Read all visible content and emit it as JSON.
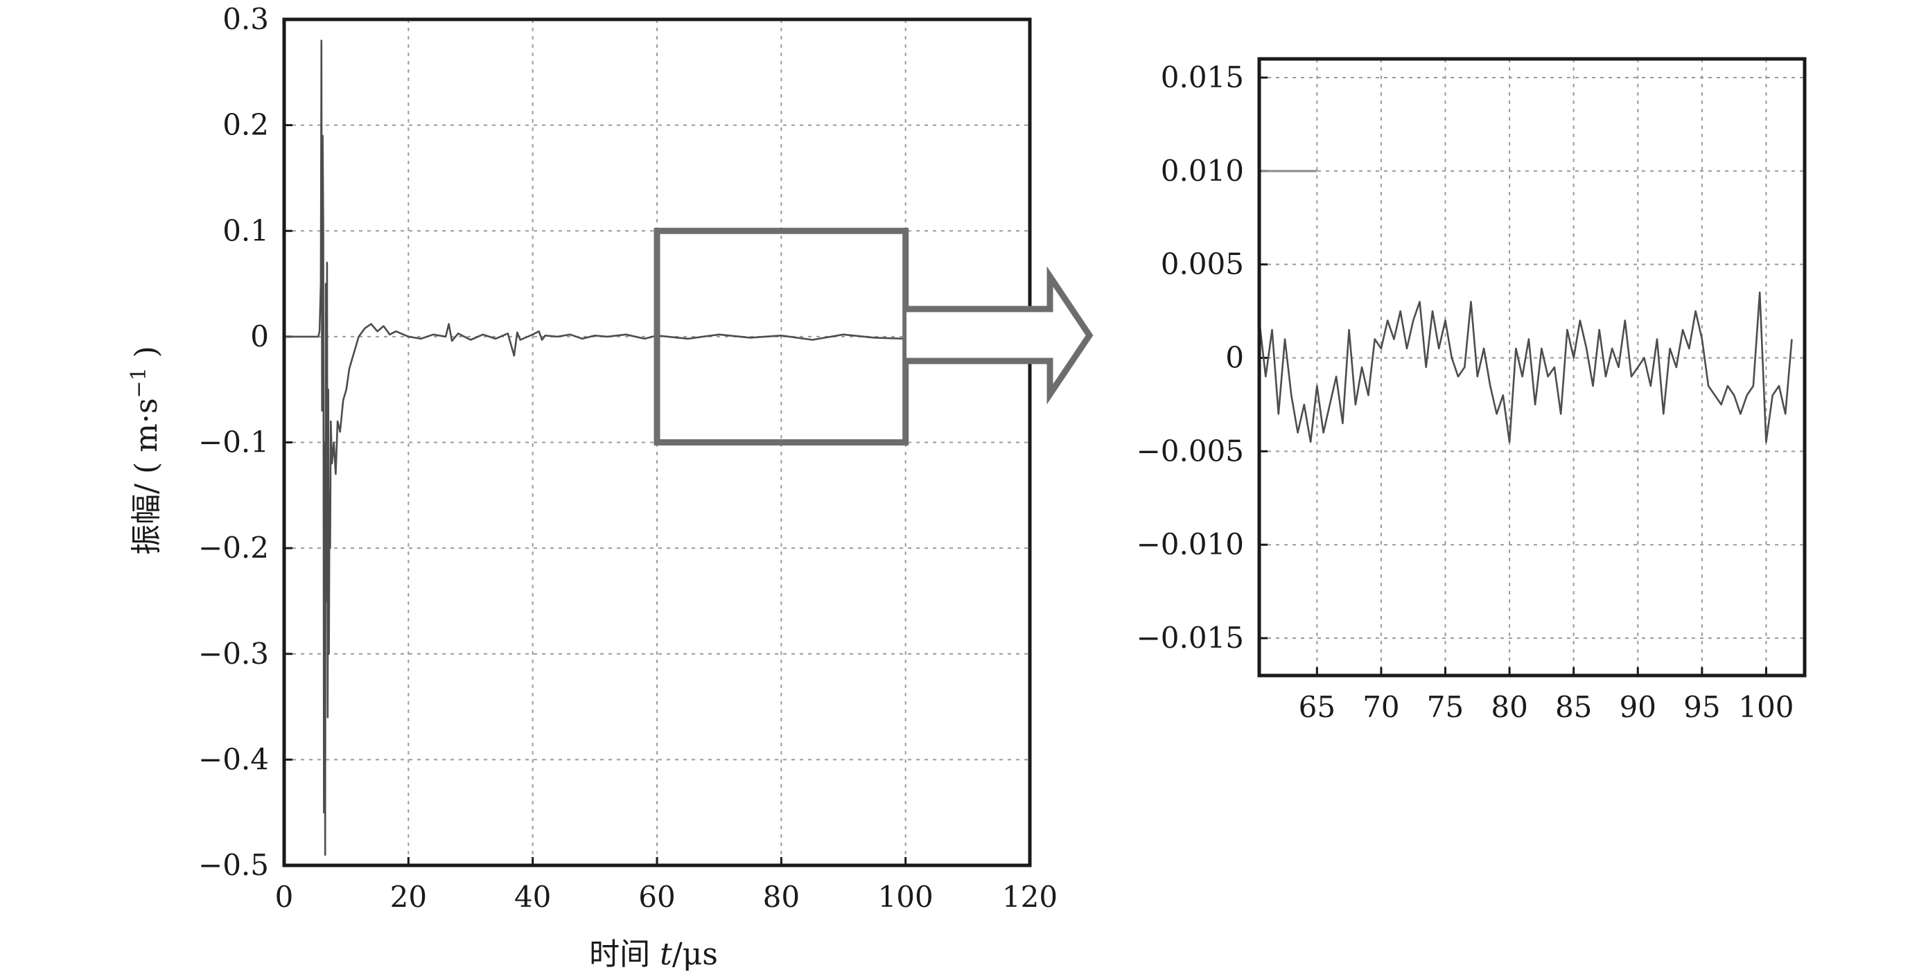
{
  "chart_data": [
    {
      "id": "main",
      "type": "line",
      "xlabel_prefix": "时间 ",
      "xlabel_var": "t",
      "xlabel_unit": "/μs",
      "ylabel_text": "振幅/ ( m·s",
      "ylabel_sup": "−1",
      "ylabel_close": " )",
      "xlim": [
        0,
        120
      ],
      "ylim": [
        -0.5,
        0.3
      ],
      "xticks": [
        0,
        20,
        40,
        60,
        80,
        100,
        120
      ],
      "xtick_labels": [
        "0",
        "20",
        "40",
        "60",
        "80",
        "100",
        "120"
      ],
      "yticks": [
        0.3,
        0.2,
        0.1,
        0,
        -0.1,
        -0.2,
        -0.3,
        -0.4,
        -0.5
      ],
      "ytick_labels": [
        "0.3",
        "0.2",
        "0.1",
        "0",
        "−0.1",
        "−0.2",
        "−0.3",
        "−0.4",
        "−0.5"
      ],
      "grid": true,
      "zoom_region": {
        "x": [
          60,
          100
        ],
        "y": [
          -0.1,
          0.1
        ]
      },
      "series": [
        {
          "x": [
            0,
            5.5,
            5.7,
            5.9,
            6.0,
            6.1,
            6.2,
            6.3,
            6.4,
            6.5,
            6.6,
            6.7,
            6.8,
            6.9,
            7.0,
            7.1,
            7.2,
            7.3,
            7.4,
            7.5,
            7.7,
            8.0,
            8.3,
            8.6,
            9.0,
            9.5,
            10,
            10.5,
            11,
            12,
            13,
            14,
            15,
            16,
            17,
            18,
            20,
            22,
            24,
            26,
            26.5,
            27,
            28,
            30,
            32,
            34,
            36,
            37,
            37.5,
            38,
            40,
            41,
            41.5,
            42,
            44,
            46,
            48,
            50,
            52,
            55,
            58,
            60,
            65,
            70,
            75,
            80,
            85,
            90,
            95,
            100,
            102
          ],
          "y": [
            0,
            0,
            0.005,
            0.05,
            0.28,
            -0.07,
            0.19,
            0.1,
            -0.45,
            -0.1,
            -0.49,
            0.05,
            -0.25,
            0.07,
            -0.36,
            -0.05,
            -0.3,
            -0.15,
            -0.2,
            -0.08,
            -0.12,
            -0.1,
            -0.13,
            -0.08,
            -0.09,
            -0.06,
            -0.05,
            -0.03,
            -0.02,
            0,
            0.008,
            0.012,
            0.005,
            0.01,
            0.002,
            0.005,
            0,
            -0.002,
            0.002,
            0,
            0.012,
            -0.004,
            0.003,
            -0.003,
            0.002,
            -0.002,
            0.003,
            -0.018,
            0.004,
            -0.003,
            0.002,
            0.005,
            -0.003,
            0.001,
            0,
            0.002,
            -0.002,
            0.001,
            0,
            0.002,
            -0.002,
            0.001,
            -0.002,
            0.002,
            -0.001,
            0.001,
            -0.003,
            0.002,
            -0.001,
            -0.002,
            0
          ]
        }
      ]
    },
    {
      "id": "zoom",
      "type": "line",
      "xlim": [
        60.5,
        103
      ],
      "ylim": [
        -0.017,
        0.016
      ],
      "xticks": [
        65,
        70,
        75,
        80,
        85,
        90,
        95,
        100
      ],
      "xtick_labels": [
        "65",
        "70",
        "75",
        "80",
        "85",
        "90",
        "95",
        "100"
      ],
      "yticks": [
        0.015,
        0.01,
        0.005,
        0,
        -0.005,
        -0.01,
        -0.015
      ],
      "ytick_labels": [
        "0.015",
        "0.010",
        "0.005",
        "0",
        "−0.005",
        "−0.010",
        "−0.015"
      ],
      "grid": true,
      "series": [
        {
          "x": [
            60.5,
            61.0,
            61.5,
            62.0,
            62.5,
            63.0,
            63.5,
            64.0,
            64.5,
            65.0,
            65.5,
            66.0,
            66.5,
            67.0,
            67.5,
            68.0,
            68.5,
            69.0,
            69.5,
            70.0,
            70.5,
            71.0,
            71.5,
            72.0,
            72.5,
            73.0,
            73.5,
            74.0,
            74.5,
            75.0,
            75.5,
            76.0,
            76.5,
            77.0,
            77.5,
            78.0,
            78.5,
            79.0,
            79.5,
            80.0,
            80.5,
            81.0,
            81.5,
            82.0,
            82.5,
            83.0,
            83.5,
            84.0,
            84.5,
            85.0,
            85.5,
            86.0,
            86.5,
            87.0,
            87.5,
            88.0,
            88.5,
            89.0,
            89.5,
            90.0,
            90.5,
            91.0,
            91.5,
            92.0,
            92.5,
            93.0,
            93.5,
            94.0,
            94.5,
            95.0,
            95.5,
            96.0,
            96.5,
            97.0,
            97.5,
            98.0,
            98.5,
            99.0,
            99.5,
            100.0,
            100.5,
            101.0,
            101.5,
            102.0
          ],
          "y": [
            0.002,
            -0.001,
            0.0015,
            -0.003,
            0.001,
            -0.002,
            -0.004,
            -0.0025,
            -0.0045,
            -0.0015,
            -0.004,
            -0.0025,
            -0.001,
            -0.0035,
            0.0015,
            -0.0025,
            -0.0005,
            -0.002,
            0.001,
            0.0005,
            0.002,
            0.001,
            0.0025,
            0.0005,
            0.002,
            0.003,
            -0.0005,
            0.0025,
            0.0005,
            0.002,
            0.0,
            -0.001,
            -0.0005,
            0.003,
            -0.001,
            0.0005,
            -0.0015,
            -0.003,
            -0.002,
            -0.0045,
            0.0005,
            -0.001,
            0.001,
            -0.0025,
            0.0005,
            -0.001,
            -0.0005,
            -0.003,
            0.0015,
            0.0,
            0.002,
            0.0005,
            -0.0015,
            0.0015,
            -0.001,
            0.0005,
            -0.0005,
            0.002,
            -0.001,
            -0.0005,
            0.0,
            -0.0015,
            0.001,
            -0.003,
            0.0005,
            -0.0005,
            0.0015,
            0.0005,
            0.0025,
            0.001,
            -0.0015,
            -0.002,
            -0.0025,
            -0.0015,
            -0.002,
            -0.003,
            -0.002,
            -0.0015,
            0.0035,
            -0.0045,
            -0.002,
            -0.0015,
            -0.003,
            0.001
          ]
        }
      ]
    }
  ]
}
